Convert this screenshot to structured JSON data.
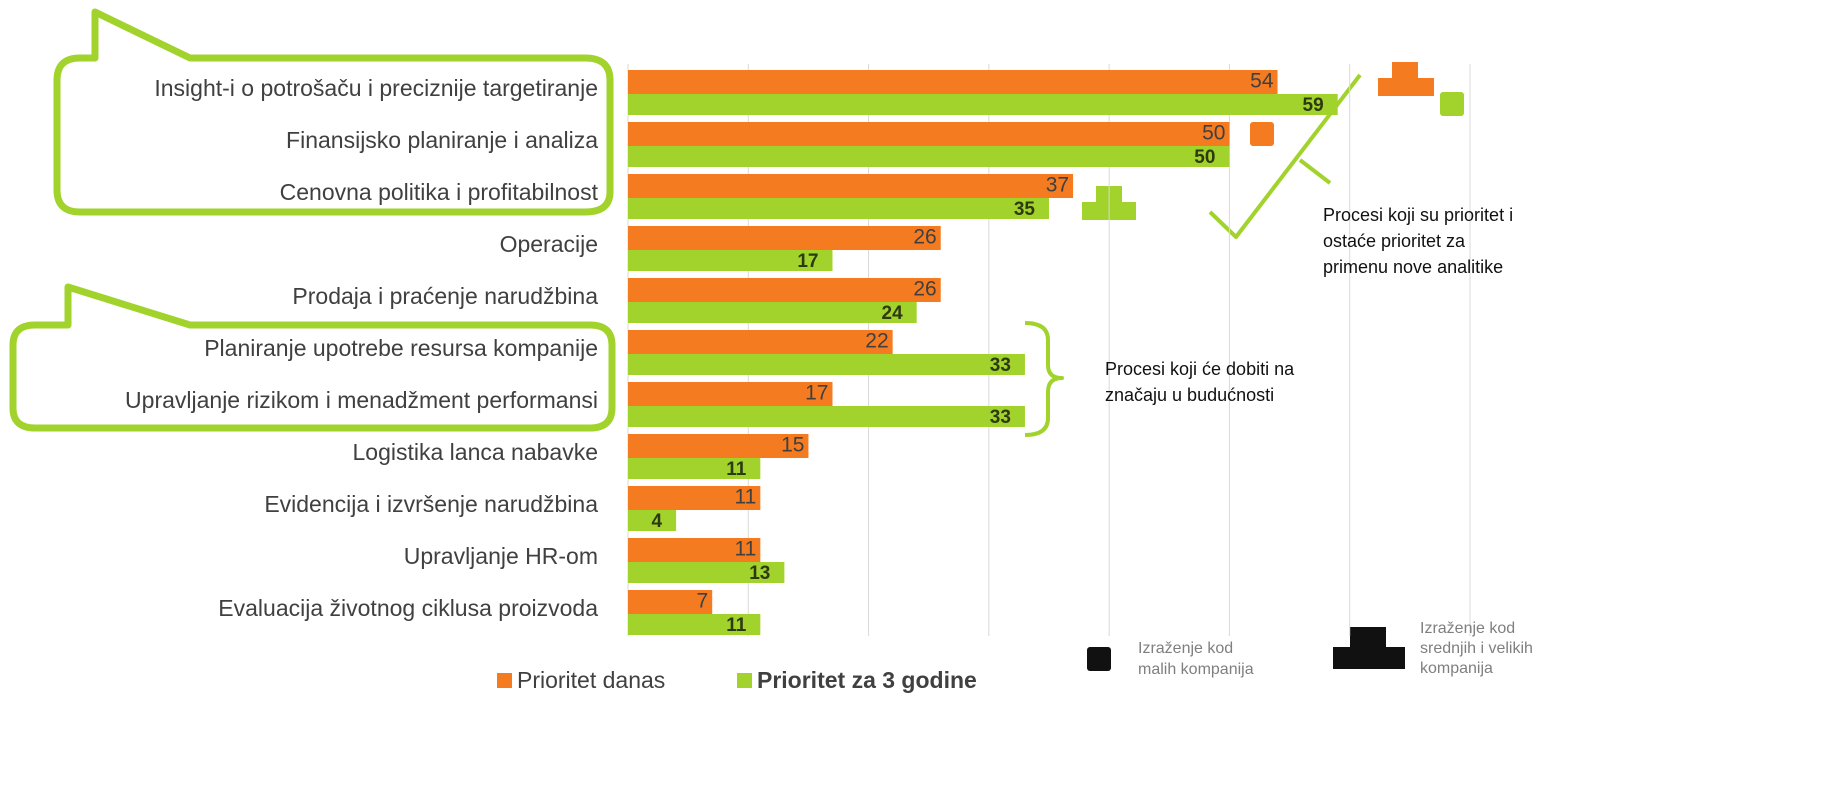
{
  "chart_data": {
    "type": "bar",
    "orientation": "horizontal",
    "categories": [
      "Insight-i o potrošaču i preciznije targetiranje",
      "Finansijsko planiranje i analiza",
      "Cenovna politika i profitabilnost",
      "Operacije",
      "Prodaja i praćenje narudžbina",
      "Planiranje upotrebe resursa kompanije",
      "Upravljanje rizikom i menadžment performansi",
      "Logistika lanca nabavke",
      "Evidencija i izvršenje narudžbina",
      "Upravljanje HR-om",
      "Evaluacija životnog ciklusa proizvoda"
    ],
    "series": [
      {
        "name": "Prioritet danas",
        "color": "#f47b20",
        "values": [
          54,
          50,
          37,
          26,
          26,
          22,
          17,
          15,
          11,
          11,
          7
        ]
      },
      {
        "name": "Prioritet za 3 godine",
        "color": "#a2d32c",
        "values": [
          59,
          50,
          35,
          17,
          24,
          33,
          33,
          11,
          4,
          13,
          11
        ]
      }
    ],
    "xlim": [
      0,
      70
    ],
    "xticks": [
      0,
      10,
      20,
      30,
      40,
      50,
      60,
      70
    ],
    "grid": true,
    "annotations": [
      [
        "Procesi koji su prioritet i",
        "ostaće prioritet za",
        "primenu nove analitike"
      ],
      [
        "Procesi koji će dobiti na",
        "značaju u budućnosti"
      ],
      [
        "Izraženje kod",
        "malih kompanija"
      ],
      [
        "Izraženje kod",
        "srednjih i velikih",
        "kompanija"
      ]
    ]
  }
}
